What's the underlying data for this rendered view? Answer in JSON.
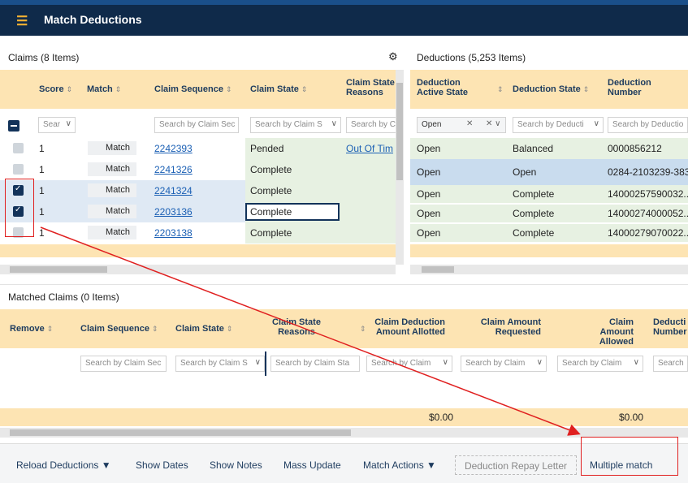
{
  "app": {
    "title": "Match Deductions"
  },
  "claims": {
    "title": "Claims (8 Items)",
    "columns": [
      "Score",
      "Match",
      "Claim Sequence",
      "Claim State",
      "Claim State Reasons"
    ],
    "filters": {
      "score": "Sear",
      "sequence": "Search by Claim Sec",
      "state": "Search by Claim S",
      "reasons": "Search by C"
    },
    "rows": [
      {
        "score": "1",
        "match": "Match",
        "sequence": "2242393",
        "state": "Pended",
        "reason": "Out Of Tim",
        "checked": false
      },
      {
        "score": "1",
        "match": "Match",
        "sequence": "2241326",
        "state": "Complete",
        "reason": "",
        "checked": false
      },
      {
        "score": "1",
        "match": "Match",
        "sequence": "2241324",
        "state": "Complete",
        "reason": "",
        "checked": true
      },
      {
        "score": "1",
        "match": "Match",
        "sequence": "2203136",
        "state": "Complete",
        "reason": "",
        "checked": true
      },
      {
        "score": "1",
        "match": "Match",
        "sequence": "2203138",
        "state": "Complete",
        "reason": "",
        "checked": false
      }
    ]
  },
  "deductions": {
    "title": "Deductions (5,253 Items)",
    "columns": [
      "Deduction Active State",
      "Deduction State",
      "Deduction Number"
    ],
    "filters": {
      "active": "Open",
      "state": "Search by Deducti",
      "number": "Search by Deductio"
    },
    "rows": [
      {
        "active": "Open",
        "state": "Balanced",
        "number": "0000856212"
      },
      {
        "active": "Open",
        "state": "Open",
        "number": "0284-2103239-383"
      },
      {
        "active": "Open",
        "state": "Complete",
        "number": "14000257590032..."
      },
      {
        "active": "Open",
        "state": "Complete",
        "number": "14000274000052..."
      },
      {
        "active": "Open",
        "state": "Complete",
        "number": "14000279070022..."
      }
    ]
  },
  "matched": {
    "title": "Matched Claims (0 Items)",
    "columns": [
      "Remove",
      "Claim Sequence",
      "Claim State",
      "Claim State Reasons",
      "Claim Deduction Amount Allotted",
      "Claim Amount Requested",
      "Claim Amount Allowed",
      "Deducti Number"
    ],
    "filters": [
      "Search by Claim Sec",
      "Search by Claim S",
      "Search by Claim Sta",
      "Search by Claim",
      "Search by Claim",
      "Search by Claim",
      "Search"
    ],
    "totals": {
      "allotted": "$0.00",
      "allowed": "$0.00"
    }
  },
  "footer": {
    "buttons": [
      "Reload Deductions",
      "Show Dates",
      "Show Notes",
      "Mass Update",
      "Match Actions",
      "Deduction Repay Letter",
      "Multiple match"
    ]
  },
  "icons": {
    "menu": "hamburger-icon",
    "settings": "gear-icon",
    "sort": "sort-icon",
    "dropdown": "caret-down-icon"
  },
  "colors": {
    "header_bg": "#0f2a4a",
    "table_header": "#fde4b3",
    "row_green": "#e7f1e2",
    "row_blue": "#dfe9f4",
    "annotation": "#e02020"
  }
}
